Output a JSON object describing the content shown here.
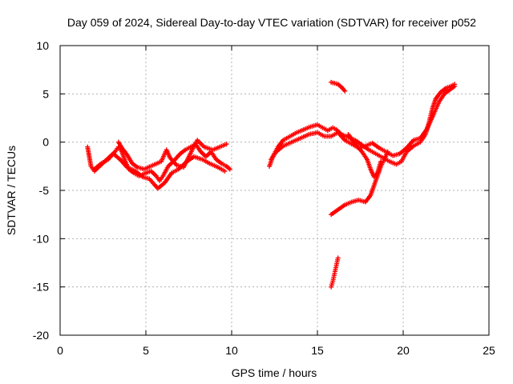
{
  "chart_data": {
    "type": "scatter",
    "title": "Day 059 of 2024, Sidereal Day-to-day VTEC variation (SDTVAR) for receiver p052",
    "xlabel": "GPS time / hours",
    "ylabel": "SDTVAR / TECUs",
    "xlim": [
      0,
      25
    ],
    "ylim": [
      -20,
      10
    ],
    "xticks": [
      "0",
      "5",
      "10",
      "15",
      "20",
      "25"
    ],
    "yticks": [
      "10",
      "5",
      "0",
      "-5",
      "-10",
      "-15",
      "-20"
    ],
    "grid": true,
    "marker": "+",
    "color": "#ff0000",
    "series": [
      {
        "points": [
          [
            1.6,
            -0.5
          ],
          [
            1.7,
            -1.5
          ],
          [
            1.8,
            -2.5
          ],
          [
            2.0,
            -3.0
          ],
          [
            2.3,
            -2.5
          ],
          [
            2.6,
            -2.0
          ],
          [
            2.9,
            -1.5
          ],
          [
            3.2,
            -1.0
          ],
          [
            3.4,
            -0.5
          ],
          [
            3.6,
            -1.0
          ],
          [
            3.8,
            -2.0
          ],
          [
            4.0,
            -2.8
          ],
          [
            4.3,
            -3.2
          ],
          [
            4.6,
            -3.5
          ],
          [
            5.0,
            -3.2
          ],
          [
            5.3,
            -3.0
          ],
          [
            5.6,
            -3.5
          ],
          [
            5.8,
            -4.0
          ],
          [
            6.0,
            -3.5
          ],
          [
            6.3,
            -2.5
          ],
          [
            6.6,
            -2.0
          ],
          [
            7.0,
            -1.2
          ],
          [
            7.3,
            -0.8
          ],
          [
            7.6,
            -0.5
          ],
          [
            7.9,
            -0.2
          ],
          [
            8.2,
            -1.0
          ],
          [
            8.5,
            -1.5
          ],
          [
            8.8,
            -1.0
          ],
          [
            9.1,
            -1.8
          ],
          [
            9.4,
            -2.2
          ],
          [
            9.7,
            -2.5
          ],
          [
            9.9,
            -2.8
          ]
        ]
      },
      {
        "points": [
          [
            2.0,
            -2.8
          ],
          [
            2.4,
            -2.2
          ],
          [
            2.8,
            -1.8
          ],
          [
            3.1,
            -1.2
          ],
          [
            3.5,
            -1.8
          ],
          [
            3.9,
            -2.6
          ],
          [
            4.4,
            -3.0
          ],
          [
            4.8,
            -3.6
          ],
          [
            5.2,
            -3.8
          ],
          [
            5.5,
            -4.4
          ],
          [
            5.7,
            -4.8
          ],
          [
            6.1,
            -4.2
          ],
          [
            6.5,
            -3.2
          ],
          [
            6.9,
            -2.8
          ],
          [
            7.4,
            -2.0
          ],
          [
            7.8,
            -1.5
          ],
          [
            8.3,
            -1.8
          ],
          [
            8.7,
            -2.2
          ],
          [
            9.2,
            -2.6
          ],
          [
            9.6,
            -3.0
          ]
        ]
      },
      {
        "points": [
          [
            3.4,
            0.0
          ],
          [
            3.6,
            -0.6
          ],
          [
            3.9,
            -1.3
          ],
          [
            4.2,
            -2.2
          ],
          [
            4.5,
            -2.6
          ],
          [
            4.9,
            -2.8
          ],
          [
            5.4,
            -2.4
          ],
          [
            5.9,
            -2.0
          ],
          [
            6.2,
            -0.8
          ],
          [
            6.4,
            -1.6
          ],
          [
            6.8,
            -2.4
          ],
          [
            7.2,
            -2.6
          ],
          [
            7.7,
            -0.8
          ],
          [
            8.0,
            0.2
          ],
          [
            8.4,
            -0.5
          ],
          [
            8.9,
            -0.8
          ],
          [
            9.3,
            -0.5
          ],
          [
            9.7,
            -0.2
          ]
        ]
      },
      {
        "points": [
          [
            12.2,
            -2.5
          ],
          [
            12.4,
            -1.5
          ],
          [
            12.7,
            -0.5
          ],
          [
            13.0,
            0.2
          ],
          [
            13.4,
            0.6
          ],
          [
            13.8,
            1.0
          ],
          [
            14.2,
            1.3
          ],
          [
            14.6,
            1.6
          ],
          [
            15.0,
            1.8
          ],
          [
            15.3,
            1.5
          ],
          [
            15.6,
            1.2
          ],
          [
            15.9,
            1.5
          ],
          [
            16.1,
            1.3
          ],
          [
            16.4,
            0.8
          ],
          [
            16.8,
            0.5
          ],
          [
            17.2,
            0.2
          ],
          [
            17.6,
            -0.3
          ],
          [
            18.0,
            -0.8
          ],
          [
            18.4,
            -1.2
          ],
          [
            18.8,
            -1.6
          ],
          [
            19.2,
            -2.0
          ],
          [
            19.6,
            -2.3
          ],
          [
            19.9,
            -2.0
          ],
          [
            20.2,
            -1.0
          ],
          [
            20.6,
            -0.4
          ],
          [
            21.0,
            0.0
          ],
          [
            21.3,
            0.8
          ],
          [
            21.5,
            2.0
          ],
          [
            21.7,
            3.5
          ],
          [
            21.9,
            4.5
          ],
          [
            22.2,
            5.2
          ],
          [
            22.5,
            5.6
          ],
          [
            22.8,
            5.8
          ],
          [
            23.0,
            6.0
          ]
        ]
      },
      {
        "points": [
          [
            12.3,
            -1.8
          ],
          [
            12.6,
            -1.0
          ],
          [
            13.0,
            -0.4
          ],
          [
            13.5,
            0.0
          ],
          [
            14.0,
            0.4
          ],
          [
            14.5,
            0.8
          ],
          [
            15.0,
            1.0
          ],
          [
            15.4,
            0.6
          ],
          [
            15.8,
            0.6
          ],
          [
            16.2,
            1.0
          ],
          [
            16.6,
            0.2
          ],
          [
            17.0,
            -0.2
          ],
          [
            17.4,
            -0.6
          ],
          [
            17.8,
            -0.4
          ],
          [
            18.2,
            -0.1
          ],
          [
            18.6,
            -0.6
          ],
          [
            19.0,
            -1.0
          ],
          [
            19.4,
            -1.4
          ],
          [
            19.8,
            -1.2
          ],
          [
            20.2,
            -0.6
          ],
          [
            20.6,
            0.2
          ],
          [
            21.0,
            0.4
          ],
          [
            21.4,
            1.4
          ],
          [
            21.8,
            3.0
          ],
          [
            22.1,
            4.2
          ],
          [
            22.4,
            5.0
          ],
          [
            22.7,
            5.4
          ],
          [
            23.0,
            5.8
          ]
        ]
      },
      {
        "points": [
          [
            16.8,
            0.8
          ],
          [
            17.2,
            -0.2
          ],
          [
            17.6,
            -1.0
          ],
          [
            17.9,
            -1.8
          ],
          [
            18.1,
            -2.8
          ],
          [
            18.3,
            -3.6
          ],
          [
            18.5,
            -3.2
          ],
          [
            18.7,
            -2.0
          ]
        ]
      },
      {
        "points": [
          [
            15.8,
            -7.5
          ],
          [
            16.2,
            -7.0
          ],
          [
            16.6,
            -6.5
          ],
          [
            17.0,
            -6.2
          ],
          [
            17.4,
            -6.0
          ],
          [
            17.8,
            -6.2
          ],
          [
            18.1,
            -5.5
          ],
          [
            18.3,
            -4.5
          ],
          [
            18.5,
            -3.5
          ],
          [
            18.7,
            -2.5
          ],
          [
            18.9,
            -1.8
          ],
          [
            19.1,
            -1.0
          ]
        ]
      },
      {
        "points": [
          [
            15.8,
            6.2
          ],
          [
            16.0,
            6.1
          ],
          [
            16.2,
            6.0
          ],
          [
            16.4,
            5.7
          ],
          [
            16.6,
            5.3
          ]
        ]
      },
      {
        "points": [
          [
            15.8,
            -15.0
          ],
          [
            15.9,
            -14.4
          ],
          [
            16.0,
            -13.6
          ],
          [
            16.1,
            -12.8
          ],
          [
            16.2,
            -12.0
          ]
        ]
      }
    ]
  }
}
